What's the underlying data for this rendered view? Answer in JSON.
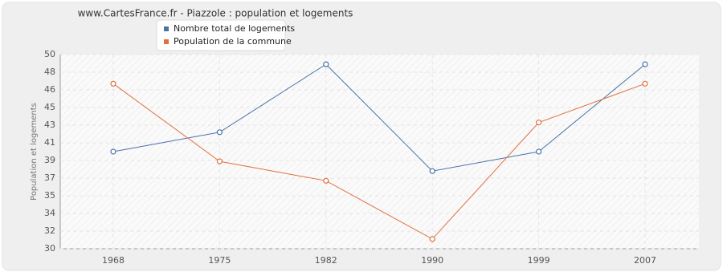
{
  "chart_data": {
    "type": "line",
    "title": "www.CartesFrance.fr - Piazzole : population et logements",
    "y_label": "Population et logements",
    "categories": [
      "1968",
      "1975",
      "1982",
      "1990",
      "1999",
      "2007"
    ],
    "series": [
      {
        "name": "Nombre total de logements",
        "color": "#4a72a8",
        "values": [
          40,
          42,
          49,
          38,
          40,
          49
        ]
      },
      {
        "name": "Population de la commune",
        "color": "#e07040",
        "values": [
          47,
          39,
          37,
          31,
          43,
          47
        ]
      }
    ],
    "ylim": [
      30,
      50
    ],
    "yticks": [
      30,
      {
        "value": 31.82,
        "label": "32"
      },
      {
        "value": 33.64,
        "label": "34"
      },
      {
        "value": 35.45,
        "label": "35"
      },
      {
        "value": 37.27,
        "label": "37"
      },
      {
        "value": 39.09,
        "label": "39"
      },
      {
        "value": 40.91,
        "label": "41"
      },
      {
        "value": 42.73,
        "label": "43"
      },
      {
        "value": 44.55,
        "label": "45"
      },
      {
        "value": 46.36,
        "label": "46"
      },
      {
        "value": 48.18,
        "label": "48"
      },
      50
    ],
    "grid": true
  }
}
